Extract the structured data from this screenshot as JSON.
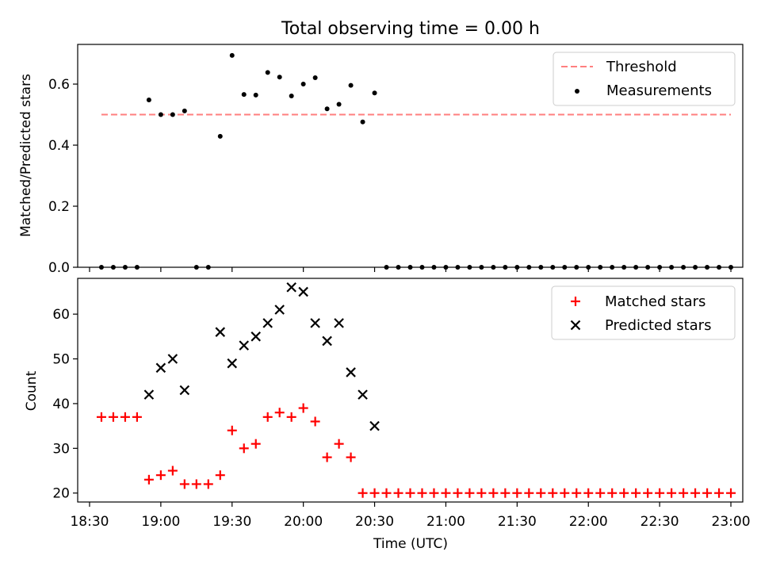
{
  "chart_data": [
    {
      "type": "scatter",
      "title": "Total observing time = 0.00 h",
      "xlabel": "",
      "ylabel": "Matched/Predicted stars",
      "ylim": [
        0,
        0.73
      ],
      "yticks": [
        "0.0",
        "0.2",
        "0.4",
        "0.6"
      ],
      "legend_position": "upper right",
      "colors": {
        "threshold": "#ff7f7f",
        "measurements": "#000000"
      },
      "threshold": {
        "name": "Threshold",
        "value": 0.5,
        "x": [
          "18:35",
          "23:00"
        ]
      },
      "series": [
        {
          "name": "Measurements",
          "points": [
            [
              "18:35",
              0.0
            ],
            [
              "18:40",
              0.0
            ],
            [
              "18:45",
              0.0
            ],
            [
              "18:50",
              0.0
            ],
            [
              "18:55",
              0.548
            ],
            [
              "19:00",
              0.5
            ],
            [
              "19:05",
              0.5
            ],
            [
              "19:10",
              0.512
            ],
            [
              "19:15",
              0.0
            ],
            [
              "19:20",
              0.0
            ],
            [
              "19:25",
              0.429
            ],
            [
              "19:30",
              0.694
            ],
            [
              "19:35",
              0.566
            ],
            [
              "19:40",
              0.564
            ],
            [
              "19:45",
              0.638
            ],
            [
              "19:50",
              0.623
            ],
            [
              "19:55",
              0.561
            ],
            [
              "20:00",
              0.6
            ],
            [
              "20:05",
              0.621
            ],
            [
              "20:10",
              0.519
            ],
            [
              "20:15",
              0.534
            ],
            [
              "20:20",
              0.596
            ],
            [
              "20:25",
              0.476
            ],
            [
              "20:30",
              0.571
            ],
            [
              "20:35",
              0.0
            ],
            [
              "20:40",
              0.0
            ],
            [
              "20:45",
              0.0
            ],
            [
              "20:50",
              0.0
            ],
            [
              "20:55",
              0.0
            ],
            [
              "21:00",
              0.0
            ],
            [
              "21:05",
              0.0
            ],
            [
              "21:10",
              0.0
            ],
            [
              "21:15",
              0.0
            ],
            [
              "21:20",
              0.0
            ],
            [
              "21:25",
              0.0
            ],
            [
              "21:30",
              0.0
            ],
            [
              "21:35",
              0.0
            ],
            [
              "21:40",
              0.0
            ],
            [
              "21:45",
              0.0
            ],
            [
              "21:50",
              0.0
            ],
            [
              "21:55",
              0.0
            ],
            [
              "22:00",
              0.0
            ],
            [
              "22:05",
              0.0
            ],
            [
              "22:10",
              0.0
            ],
            [
              "22:15",
              0.0
            ],
            [
              "22:20",
              0.0
            ],
            [
              "22:25",
              0.0
            ],
            [
              "22:30",
              0.0
            ],
            [
              "22:35",
              0.0
            ],
            [
              "22:40",
              0.0
            ],
            [
              "22:45",
              0.0
            ],
            [
              "22:50",
              0.0
            ],
            [
              "22:55",
              0.0
            ],
            [
              "23:00",
              0.0
            ]
          ]
        }
      ]
    },
    {
      "type": "scatter",
      "title": "",
      "xlabel": "Time (UTC)",
      "ylabel": "Count",
      "ylim": [
        18,
        68
      ],
      "yticks": [
        "20",
        "30",
        "40",
        "50",
        "60"
      ],
      "xlim": [
        "18:25",
        "23:05"
      ],
      "xticks": [
        "18:30",
        "19:00",
        "19:30",
        "20:00",
        "20:30",
        "21:00",
        "21:30",
        "22:00",
        "22:30",
        "23:00"
      ],
      "legend_position": "upper right",
      "colors": {
        "matched": "#ff0000",
        "predicted": "#000000"
      },
      "series": [
        {
          "name": "Matched stars",
          "marker": "plus",
          "points": [
            [
              "18:35",
              37
            ],
            [
              "18:40",
              37
            ],
            [
              "18:45",
              37
            ],
            [
              "18:50",
              37
            ],
            [
              "18:55",
              23
            ],
            [
              "19:00",
              24
            ],
            [
              "19:05",
              25
            ],
            [
              "19:10",
              22
            ],
            [
              "19:15",
              22
            ],
            [
              "19:20",
              22
            ],
            [
              "19:25",
              24
            ],
            [
              "19:30",
              34
            ],
            [
              "19:35",
              30
            ],
            [
              "19:40",
              31
            ],
            [
              "19:45",
              37
            ],
            [
              "19:50",
              38
            ],
            [
              "19:55",
              37
            ],
            [
              "20:00",
              39
            ],
            [
              "20:05",
              36
            ],
            [
              "20:10",
              28
            ],
            [
              "20:15",
              31
            ],
            [
              "20:20",
              28
            ],
            [
              "20:25",
              20
            ],
            [
              "20:30",
              20
            ],
            [
              "20:35",
              20
            ],
            [
              "20:40",
              20
            ],
            [
              "20:45",
              20
            ],
            [
              "20:50",
              20
            ],
            [
              "20:55",
              20
            ],
            [
              "21:00",
              20
            ],
            [
              "21:05",
              20
            ],
            [
              "21:10",
              20
            ],
            [
              "21:15",
              20
            ],
            [
              "21:20",
              20
            ],
            [
              "21:25",
              20
            ],
            [
              "21:30",
              20
            ],
            [
              "21:35",
              20
            ],
            [
              "21:40",
              20
            ],
            [
              "21:45",
              20
            ],
            [
              "21:50",
              20
            ],
            [
              "21:55",
              20
            ],
            [
              "22:00",
              20
            ],
            [
              "22:05",
              20
            ],
            [
              "22:10",
              20
            ],
            [
              "22:15",
              20
            ],
            [
              "22:20",
              20
            ],
            [
              "22:25",
              20
            ],
            [
              "22:30",
              20
            ],
            [
              "22:35",
              20
            ],
            [
              "22:40",
              20
            ],
            [
              "22:45",
              20
            ],
            [
              "22:50",
              20
            ],
            [
              "22:55",
              20
            ],
            [
              "23:00",
              20
            ]
          ]
        },
        {
          "name": "Predicted stars",
          "marker": "x",
          "points": [
            [
              "18:55",
              42
            ],
            [
              "19:00",
              48
            ],
            [
              "19:05",
              50
            ],
            [
              "19:10",
              43
            ],
            [
              "19:25",
              56
            ],
            [
              "19:30",
              49
            ],
            [
              "19:35",
              53
            ],
            [
              "19:40",
              55
            ],
            [
              "19:45",
              58
            ],
            [
              "19:50",
              61
            ],
            [
              "19:55",
              66
            ],
            [
              "20:00",
              65
            ],
            [
              "20:05",
              58
            ],
            [
              "20:10",
              54
            ],
            [
              "20:15",
              58
            ],
            [
              "20:20",
              47
            ],
            [
              "20:25",
              42
            ],
            [
              "20:30",
              35
            ]
          ]
        }
      ]
    }
  ]
}
